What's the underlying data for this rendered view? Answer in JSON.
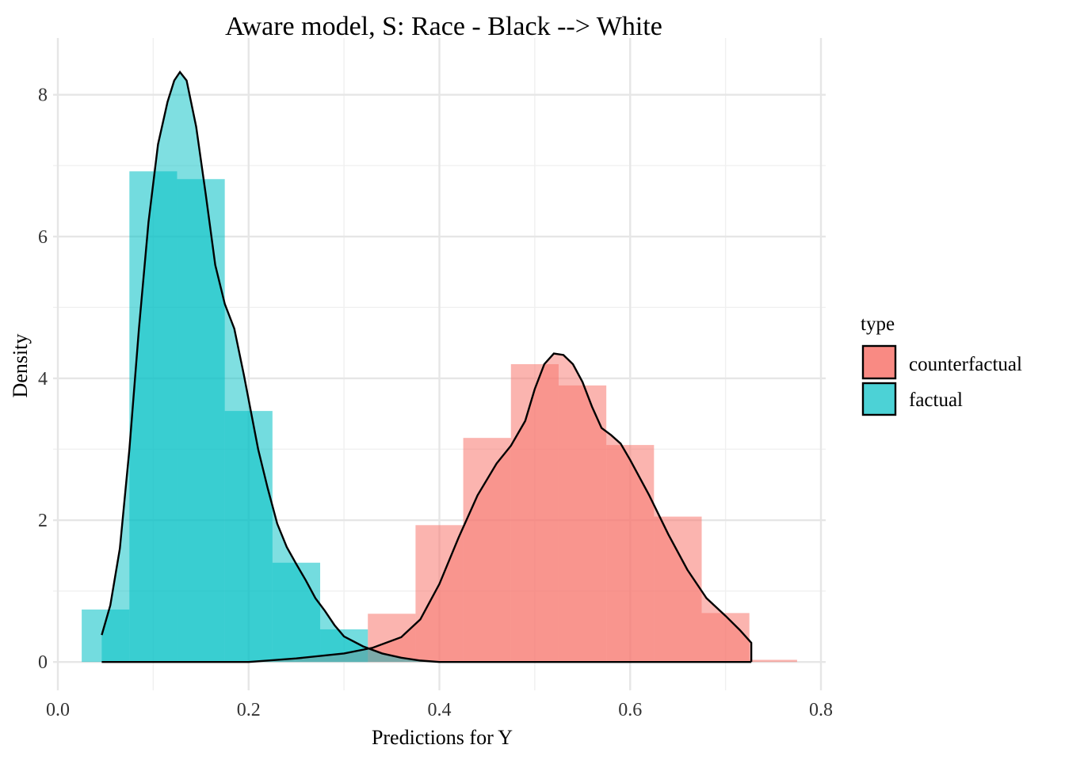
{
  "chart_data": {
    "type": "histogram",
    "title": "Aware model, S: Race - Black --> White",
    "xlabel": "Predictions for Y",
    "ylabel": "Density",
    "xlim": [
      -0.005,
      0.805
    ],
    "ylim": [
      -0.4,
      8.8
    ],
    "x_ticks": [
      0.0,
      0.2,
      0.4,
      0.6,
      0.8
    ],
    "x_tick_labels": [
      "0.0",
      "0.2",
      "0.4",
      "0.6",
      "0.8"
    ],
    "x_minor_ticks": [
      0.1,
      0.3,
      0.5,
      0.7
    ],
    "y_ticks": [
      0,
      2,
      4,
      6,
      8
    ],
    "y_tick_labels": [
      "0",
      "2",
      "4",
      "6",
      "8"
    ],
    "y_minor_ticks": [
      1,
      3,
      5,
      7
    ],
    "grid": true,
    "legend": {
      "title": "type",
      "position": "right"
    },
    "bin_width": 0.05,
    "series": [
      {
        "name": "counterfactual",
        "color": "#F8766D",
        "bins": [
          {
            "x0": 0.325,
            "x1": 0.375,
            "density": 0.68
          },
          {
            "x0": 0.375,
            "x1": 0.425,
            "density": 1.93
          },
          {
            "x0": 0.425,
            "x1": 0.475,
            "density": 3.16
          },
          {
            "x0": 0.475,
            "x1": 0.525,
            "density": 4.2
          },
          {
            "x0": 0.525,
            "x1": 0.575,
            "density": 3.9
          },
          {
            "x0": 0.575,
            "x1": 0.625,
            "density": 3.06
          },
          {
            "x0": 0.625,
            "x1": 0.675,
            "density": 2.05
          },
          {
            "x0": 0.675,
            "x1": 0.725,
            "density": 0.69
          },
          {
            "x0": 0.725,
            "x1": 0.775,
            "density": 0.03
          }
        ],
        "density_curve": [
          [
            0.046,
            0.0
          ],
          [
            0.2,
            0.0
          ],
          [
            0.25,
            0.05
          ],
          [
            0.3,
            0.12
          ],
          [
            0.33,
            0.2
          ],
          [
            0.36,
            0.35
          ],
          [
            0.38,
            0.6
          ],
          [
            0.4,
            1.1
          ],
          [
            0.42,
            1.75
          ],
          [
            0.44,
            2.35
          ],
          [
            0.46,
            2.8
          ],
          [
            0.475,
            3.05
          ],
          [
            0.49,
            3.4
          ],
          [
            0.5,
            3.85
          ],
          [
            0.51,
            4.2
          ],
          [
            0.52,
            4.35
          ],
          [
            0.53,
            4.33
          ],
          [
            0.54,
            4.2
          ],
          [
            0.55,
            3.95
          ],
          [
            0.56,
            3.6
          ],
          [
            0.57,
            3.3
          ],
          [
            0.58,
            3.2
          ],
          [
            0.59,
            3.08
          ],
          [
            0.6,
            2.85
          ],
          [
            0.62,
            2.35
          ],
          [
            0.64,
            1.8
          ],
          [
            0.66,
            1.3
          ],
          [
            0.68,
            0.9
          ],
          [
            0.7,
            0.65
          ],
          [
            0.715,
            0.45
          ],
          [
            0.727,
            0.27
          ],
          [
            0.727,
            0.0
          ]
        ]
      },
      {
        "name": "factual",
        "color": "#00BFC4",
        "bins": [
          {
            "x0": 0.025,
            "x1": 0.075,
            "density": 0.74
          },
          {
            "x0": 0.075,
            "x1": 0.125,
            "density": 6.92
          },
          {
            "x0": 0.125,
            "x1": 0.175,
            "density": 6.81
          },
          {
            "x0": 0.175,
            "x1": 0.225,
            "density": 3.54
          },
          {
            "x0": 0.225,
            "x1": 0.275,
            "density": 1.4
          },
          {
            "x0": 0.275,
            "x1": 0.325,
            "density": 0.46
          }
        ],
        "density_curve": [
          [
            0.046,
            0.38
          ],
          [
            0.055,
            0.8
          ],
          [
            0.065,
            1.6
          ],
          [
            0.075,
            3.0
          ],
          [
            0.085,
            4.7
          ],
          [
            0.095,
            6.2
          ],
          [
            0.105,
            7.3
          ],
          [
            0.115,
            7.9
          ],
          [
            0.122,
            8.2
          ],
          [
            0.128,
            8.32
          ],
          [
            0.135,
            8.2
          ],
          [
            0.145,
            7.55
          ],
          [
            0.155,
            6.6
          ],
          [
            0.165,
            5.6
          ],
          [
            0.175,
            5.05
          ],
          [
            0.185,
            4.7
          ],
          [
            0.195,
            4.05
          ],
          [
            0.21,
            3.0
          ],
          [
            0.22,
            2.45
          ],
          [
            0.23,
            1.95
          ],
          [
            0.24,
            1.62
          ],
          [
            0.25,
            1.38
          ],
          [
            0.26,
            1.15
          ],
          [
            0.27,
            0.9
          ],
          [
            0.28,
            0.72
          ],
          [
            0.29,
            0.52
          ],
          [
            0.3,
            0.36
          ],
          [
            0.32,
            0.22
          ],
          [
            0.34,
            0.12
          ],
          [
            0.36,
            0.06
          ],
          [
            0.38,
            0.02
          ],
          [
            0.4,
            0.0
          ],
          [
            0.727,
            0.0
          ]
        ]
      }
    ]
  }
}
